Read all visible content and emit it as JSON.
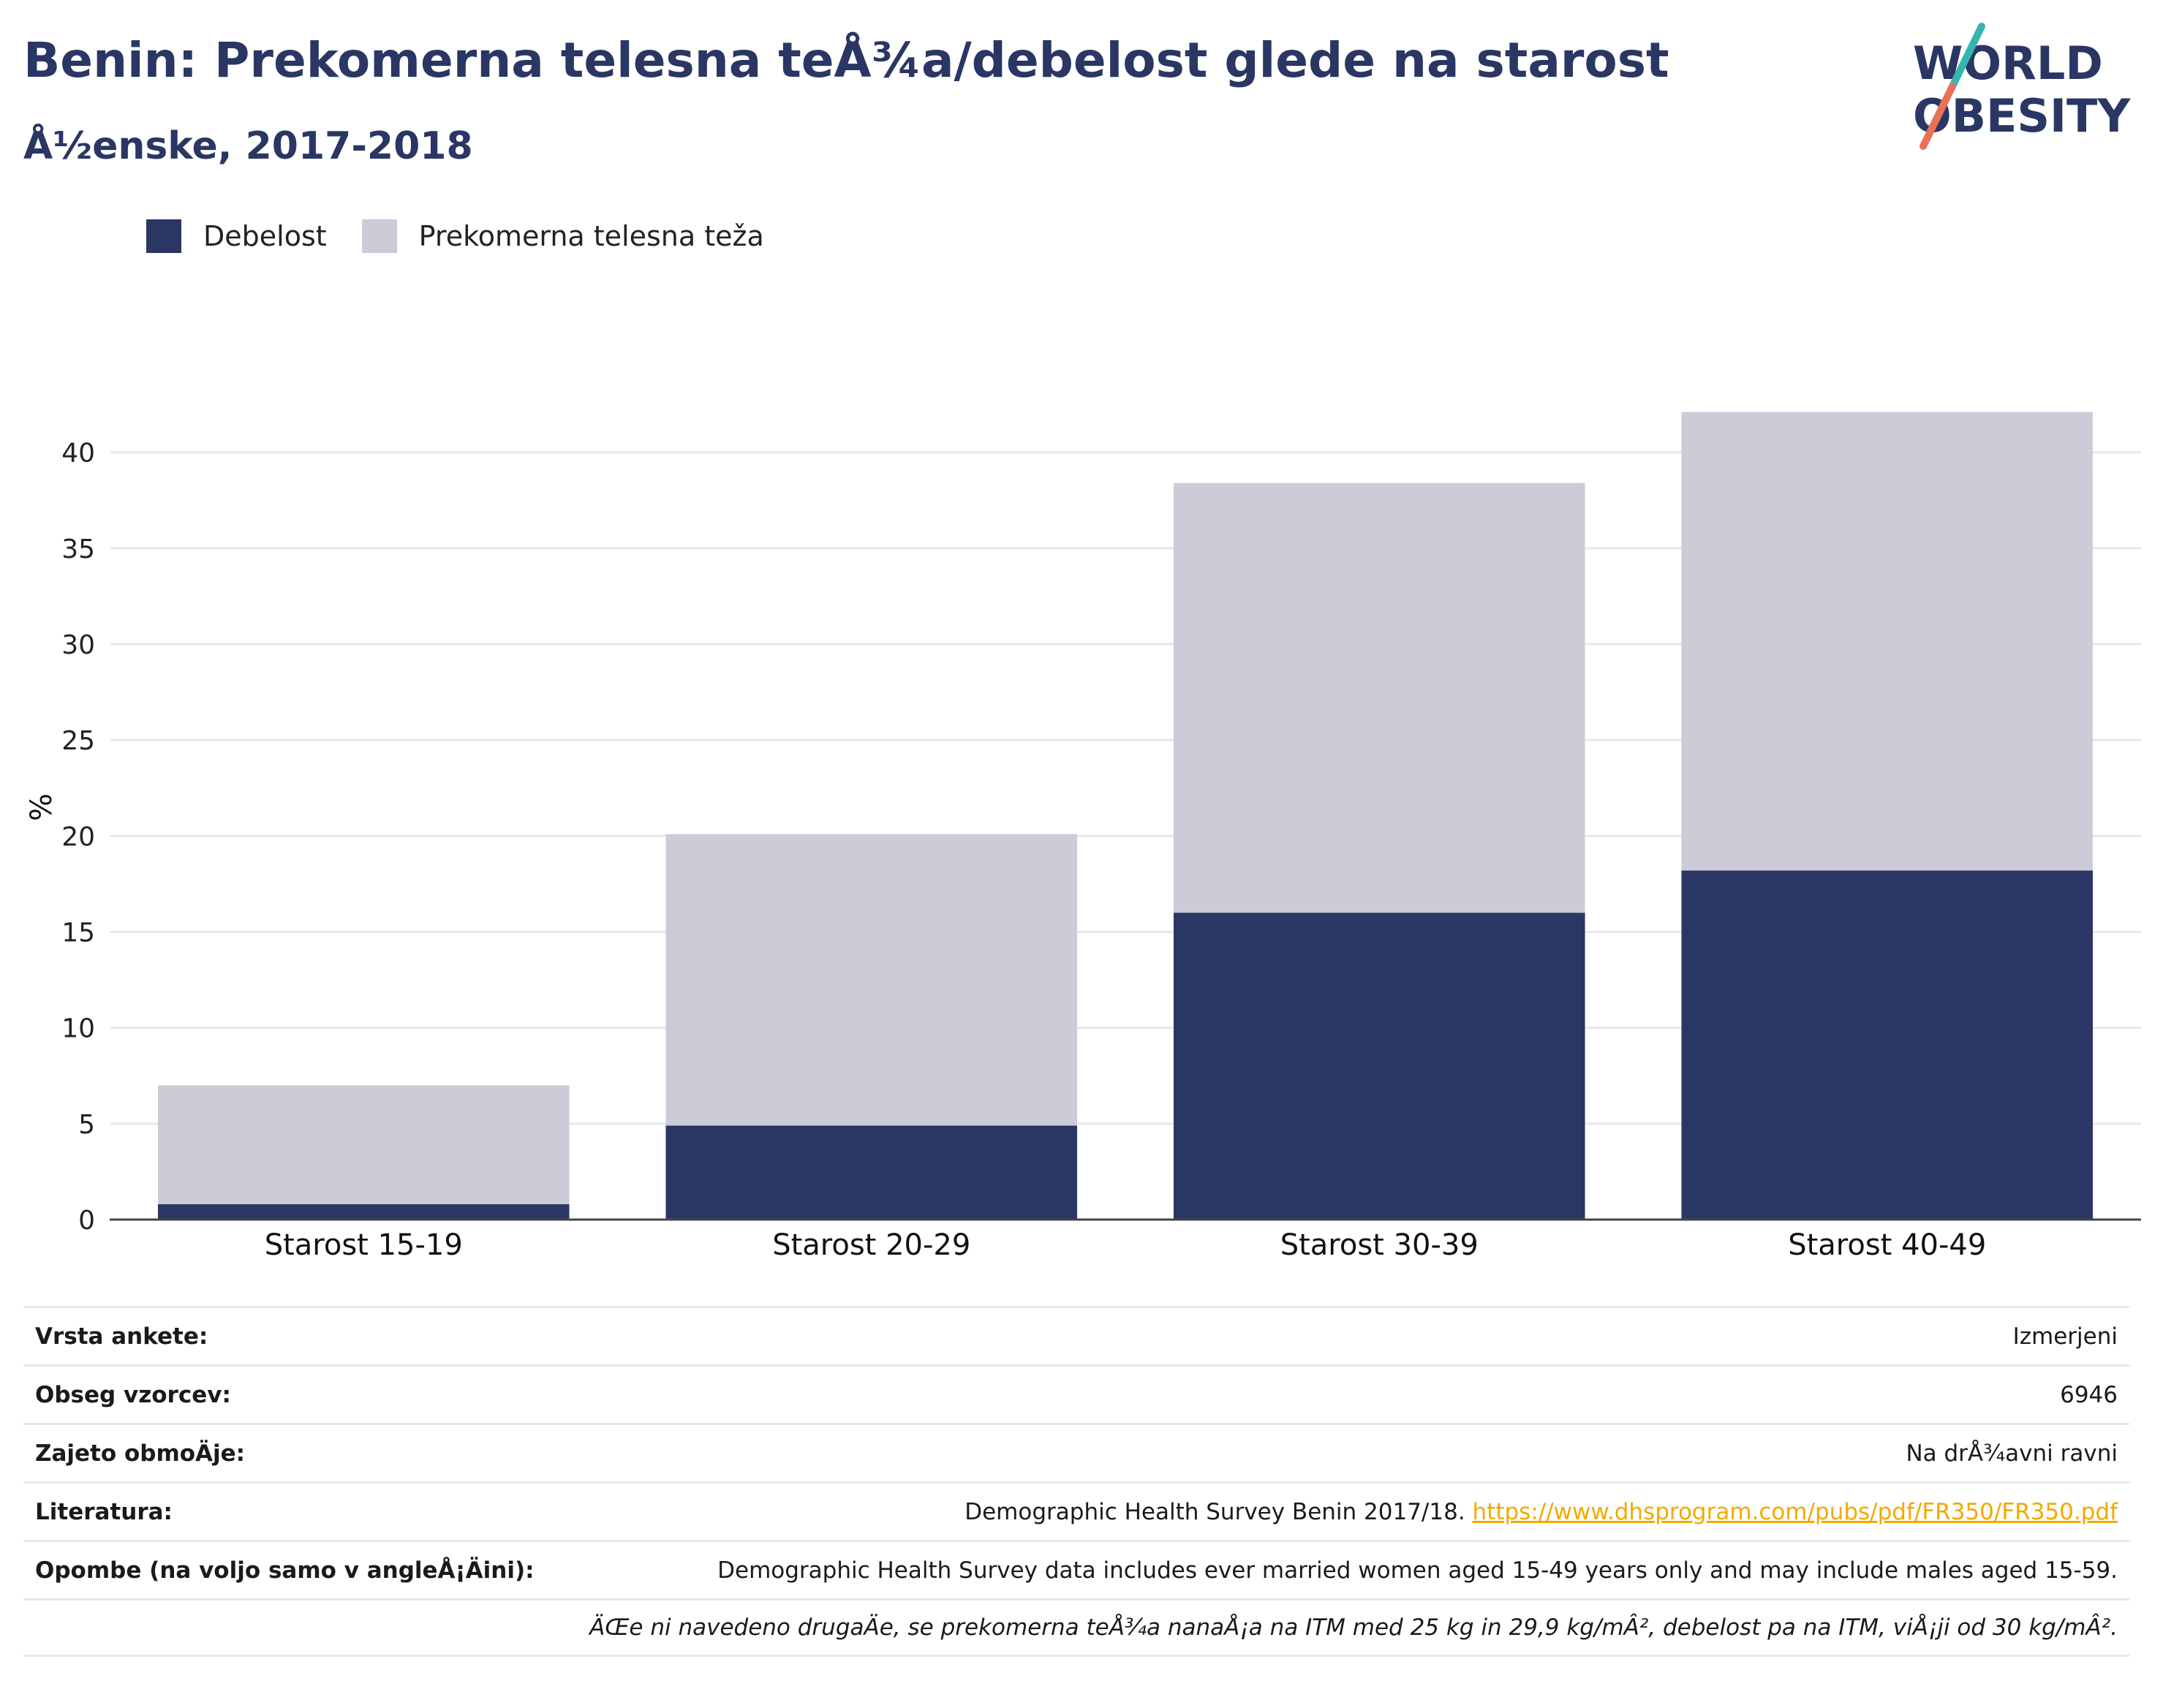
{
  "header": {
    "title": "Benin: Prekomerna telesna teÅ¾a/debelost glede na starost",
    "subtitle": "Å½enske, 2017-2018"
  },
  "logo": {
    "line1": "WORLD",
    "line2": "OBESITY"
  },
  "colors": {
    "obesity": "#2a3663",
    "overweight": "#cbccd7",
    "title": "#2a3663",
    "link": "#f2a900"
  },
  "chart_data": {
    "type": "bar",
    "stacked": true,
    "categories": [
      "Starost 15-19",
      "Starost 20-29",
      "Starost 30-39",
      "Starost 40-49"
    ],
    "series": [
      {
        "name": "Debelost",
        "values": [
          0.8,
          4.9,
          16.0,
          18.2
        ]
      },
      {
        "name": "Prekomerna telesna teža",
        "values": [
          6.2,
          15.2,
          22.4,
          23.9
        ]
      }
    ],
    "ylabel": "%",
    "ylim": [
      0,
      43
    ],
    "yticks": [
      0,
      5,
      10,
      15,
      20,
      25,
      30,
      35,
      40
    ],
    "grid": true,
    "legend": "top-left"
  },
  "info": {
    "survey_type": {
      "label": "Vrsta ankete:",
      "value": "Izmerjeni"
    },
    "sample_size": {
      "label": "Obseg vzorcev:",
      "value": "6946"
    },
    "coverage": {
      "label": "Zajeto obmoÄje:",
      "value": "Na drÅ¾avni ravni"
    },
    "literature": {
      "label": "Literatura:",
      "value": "Demographic Health Survey Benin 2017/18.",
      "link": "https://www.dhsprogram.com/pubs/pdf/FR350/FR350.pdf"
    },
    "notes": {
      "label": "Opombe (na voljo samo v angleÅ¡Äini):",
      "value": "Demographic Health Survey data includes ever married women aged 15-49 years only and may include males aged 15-59."
    },
    "footnote": "ÄŒe ni navedeno drugaÄe, se prekomerna teÅ¾a nanaÅ¡a na ITM med 25 kg in 29,9 kg/mÂ², debelost pa na ITM, viÅ¡ji od 30 kg/mÂ²."
  }
}
